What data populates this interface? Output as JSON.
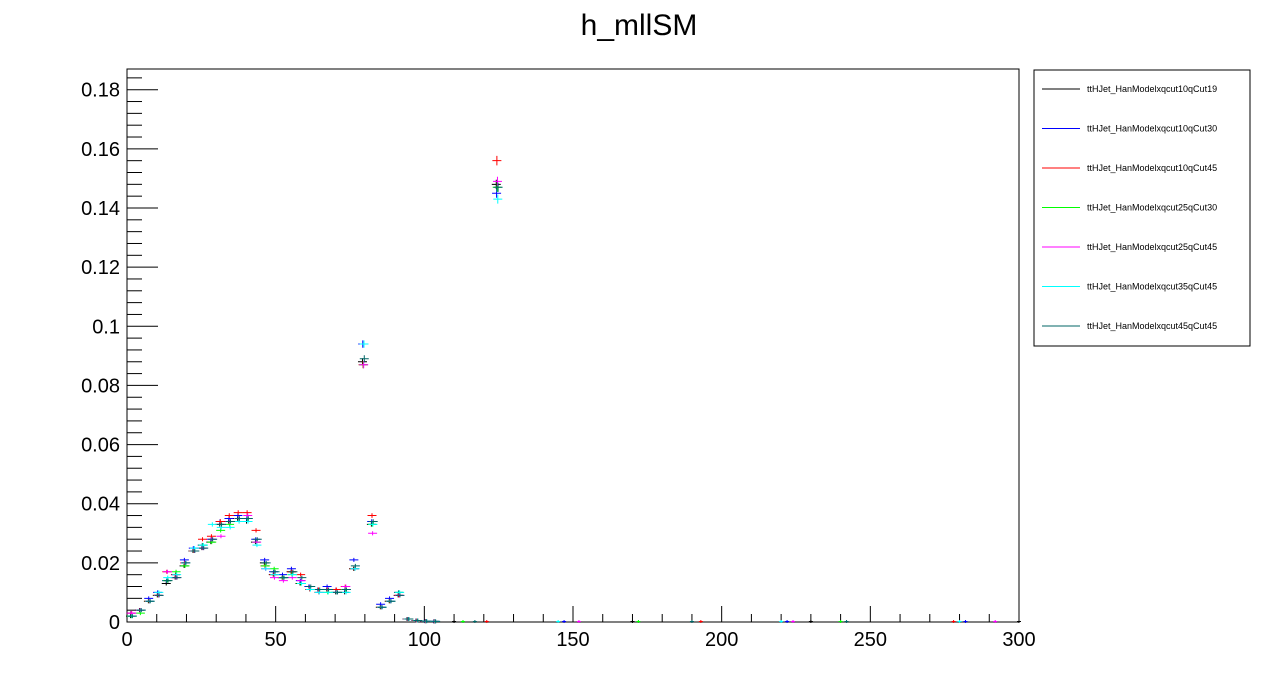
{
  "chart_data": {
    "type": "scatter",
    "title": "h_mllSM",
    "xlabel": "",
    "ylabel": "",
    "xlim": [
      0,
      300
    ],
    "ylim": [
      0,
      0.187
    ],
    "grid": false,
    "legend_position": "right",
    "x_ticks": [
      0,
      50,
      100,
      150,
      200,
      250,
      300
    ],
    "x_tick_labels": [
      "0",
      "50",
      "100",
      "150",
      "200",
      "250",
      "300"
    ],
    "y_ticks": [
      0,
      0.02,
      0.04,
      0.06,
      0.08,
      0.1,
      0.12,
      0.14,
      0.16,
      0.18
    ],
    "y_tick_labels": [
      "0",
      "0.02",
      "0.04",
      "0.06",
      "0.08",
      "0.1",
      "0.12",
      "0.14",
      "0.16",
      "0.18"
    ],
    "x": [
      1.5,
      4.5,
      7.5,
      10.5,
      13.5,
      16.5,
      19.5,
      22.5,
      25.5,
      28.5,
      31.5,
      34.5,
      37.5,
      40.5,
      43.5,
      46.5,
      49.5,
      52.5,
      55.5,
      58.5,
      61.5,
      64.5,
      67.5,
      70.5,
      73.5,
      76.5,
      79.5,
      82.5,
      85.5,
      88.5,
      91.5,
      94.5,
      97.5,
      100.5,
      103.5,
      124.5
    ],
    "series": [
      {
        "name": "ttHJet_HanModelxqcut10qCut19",
        "color": "#000000",
        "values": [
          0.002,
          0.004,
          0.007,
          0.009,
          0.013,
          0.015,
          0.019,
          0.024,
          0.025,
          0.027,
          0.033,
          0.034,
          0.035,
          0.034,
          0.027,
          0.02,
          0.016,
          0.015,
          0.017,
          0.013,
          0.012,
          0.011,
          0.011,
          0.01,
          0.01,
          0.018,
          0.088,
          0.033,
          0.005,
          0.007,
          0.009,
          0.001,
          0.0005,
          0.0003,
          0.0002,
          0.148
        ]
      },
      {
        "name": "ttHJet_HanModelxqcut10qCut30",
        "color": "#0000ff",
        "values": [
          0.003,
          0.004,
          0.008,
          0.01,
          0.014,
          0.016,
          0.021,
          0.025,
          0.026,
          0.028,
          0.034,
          0.035,
          0.036,
          0.035,
          0.028,
          0.021,
          0.017,
          0.016,
          0.018,
          0.014,
          0.012,
          0.011,
          0.012,
          0.011,
          0.011,
          0.021,
          0.094,
          0.034,
          0.006,
          0.008,
          0.01,
          0.001,
          0.0005,
          0.0003,
          0.0002,
          0.145
        ]
      },
      {
        "name": "ttHJet_HanModelxqcut10qCut45",
        "color": "#ff0000",
        "values": [
          0.003,
          0.004,
          0.007,
          0.009,
          0.017,
          0.016,
          0.02,
          0.024,
          0.028,
          0.029,
          0.034,
          0.036,
          0.037,
          0.037,
          0.031,
          0.019,
          0.016,
          0.015,
          0.017,
          0.016,
          0.011,
          0.011,
          0.011,
          0.011,
          0.012,
          0.018,
          0.087,
          0.036,
          0.005,
          0.007,
          0.009,
          0.001,
          0.0005,
          0.0003,
          0.0002,
          0.156
        ]
      },
      {
        "name": "ttHJet_HanModelxqcut25qCut30",
        "color": "#00ff00",
        "values": [
          0.002,
          0.003,
          0.007,
          0.009,
          0.014,
          0.017,
          0.019,
          0.024,
          0.026,
          0.027,
          0.031,
          0.033,
          0.035,
          0.035,
          0.027,
          0.019,
          0.018,
          0.015,
          0.016,
          0.013,
          0.011,
          0.01,
          0.01,
          0.01,
          0.011,
          0.018,
          0.087,
          0.033,
          0.005,
          0.007,
          0.01,
          0.001,
          0.0005,
          0.0003,
          0.0002,
          0.147
        ]
      },
      {
        "name": "ttHJet_HanModelxqcut25qCut45",
        "color": "#ff00ff",
        "values": [
          0.003,
          0.004,
          0.007,
          0.009,
          0.017,
          0.015,
          0.02,
          0.024,
          0.025,
          0.028,
          0.029,
          0.034,
          0.035,
          0.036,
          0.027,
          0.018,
          0.015,
          0.014,
          0.015,
          0.014,
          0.011,
          0.01,
          0.011,
          0.01,
          0.012,
          0.018,
          0.087,
          0.03,
          0.005,
          0.007,
          0.009,
          0.001,
          0.0005,
          0.0003,
          0.0002,
          0.149
        ]
      },
      {
        "name": "ttHJet_HanModelxqcut35qCut45",
        "color": "#00ffff",
        "values": [
          0.002,
          0.004,
          0.007,
          0.01,
          0.015,
          0.016,
          0.02,
          0.025,
          0.026,
          0.033,
          0.032,
          0.032,
          0.034,
          0.034,
          0.026,
          0.018,
          0.016,
          0.015,
          0.016,
          0.013,
          0.011,
          0.01,
          0.01,
          0.01,
          0.01,
          0.018,
          0.094,
          0.033,
          0.005,
          0.007,
          0.01,
          0.001,
          0.0005,
          0.0003,
          0.0002,
          0.143
        ]
      },
      {
        "name": "ttHJet_HanModelxqcut45qCut45",
        "color": "#006666",
        "values": [
          0.002,
          0.004,
          0.007,
          0.009,
          0.014,
          0.015,
          0.02,
          0.024,
          0.025,
          0.028,
          0.033,
          0.034,
          0.035,
          0.035,
          0.028,
          0.02,
          0.017,
          0.015,
          0.017,
          0.015,
          0.012,
          0.011,
          0.011,
          0.01,
          0.011,
          0.019,
          0.089,
          0.034,
          0.005,
          0.007,
          0.009,
          0.001,
          0.0005,
          0.0003,
          0.0002,
          0.147
        ]
      }
    ],
    "zero_markers_x": [
      110,
      113,
      117,
      121,
      145,
      147,
      152,
      170,
      172,
      190,
      193,
      220,
      222,
      224,
      230,
      240,
      242,
      278,
      280,
      282,
      292,
      300
    ]
  }
}
